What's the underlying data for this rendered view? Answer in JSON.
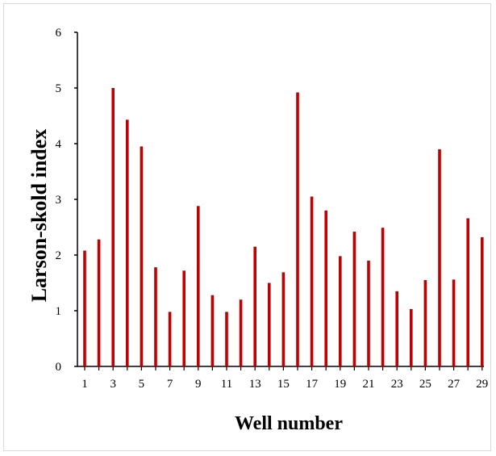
{
  "chart_data": {
    "type": "bar",
    "title": "",
    "xlabel": "Well number",
    "ylabel": "Larson-skold index",
    "ylim": [
      0,
      6
    ],
    "yticks": [
      "0",
      "1",
      "2",
      "3",
      "4",
      "5",
      "6"
    ],
    "categories": [
      "1",
      "2",
      "3",
      "4",
      "5",
      "6",
      "7",
      "8",
      "9",
      "10",
      "11",
      "12",
      "13",
      "14",
      "15",
      "16",
      "17",
      "18",
      "19",
      "20",
      "21",
      "22",
      "23",
      "24",
      "25",
      "26",
      "27",
      "28",
      "29"
    ],
    "xtick_labels": [
      "1",
      "3",
      "5",
      "7",
      "9",
      "11",
      "13",
      "15",
      "17",
      "19",
      "21",
      "23",
      "25",
      "27",
      "29"
    ],
    "values": [
      2.08,
      2.28,
      5.0,
      4.43,
      3.95,
      1.78,
      0.98,
      1.72,
      2.88,
      1.28,
      0.98,
      1.2,
      2.15,
      1.5,
      1.69,
      4.92,
      3.05,
      2.8,
      1.98,
      2.42,
      1.9,
      2.49,
      1.35,
      1.03,
      1.55,
      3.9,
      1.56,
      2.66,
      2.32
    ],
    "bar_color": "#c00000",
    "grid": false,
    "legend": "none"
  }
}
